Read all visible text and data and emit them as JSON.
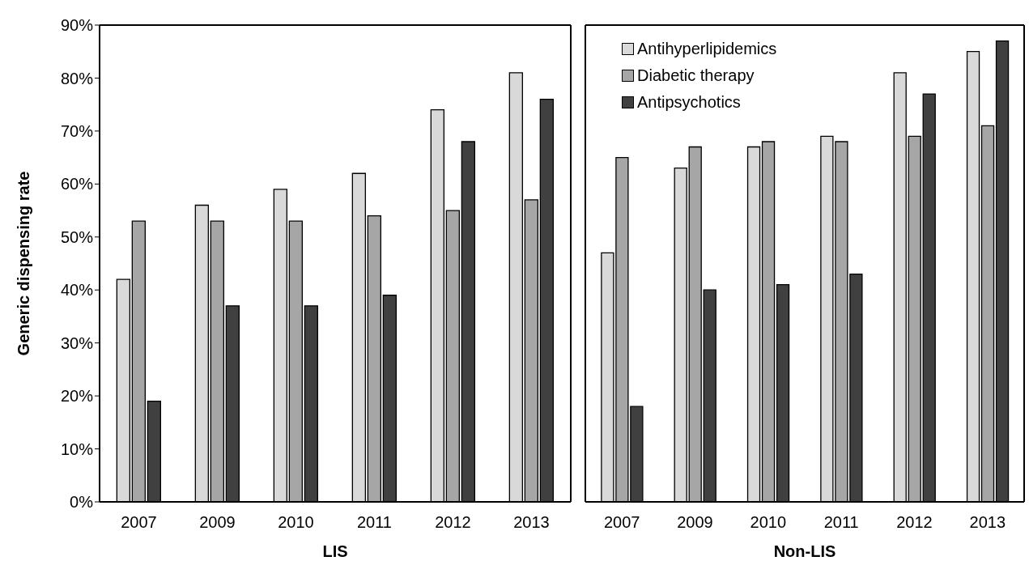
{
  "chart_data": [
    {
      "type": "bar",
      "xlabel": "LIS",
      "ylabel": "Generic dispensing rate",
      "categories": [
        "2007",
        "2009",
        "2010",
        "2011",
        "2012",
        "2013"
      ],
      "ylim": [
        0,
        90
      ],
      "yticks": [
        {
          "value": 0,
          "label": "0%"
        },
        {
          "value": 10,
          "label": "10%"
        },
        {
          "value": 20,
          "label": "20%"
        },
        {
          "value": 30,
          "label": "30%"
        },
        {
          "value": 40,
          "label": "40%"
        },
        {
          "value": 50,
          "label": "50%"
        },
        {
          "value": 60,
          "label": "60%"
        },
        {
          "value": 70,
          "label": "70%"
        },
        {
          "value": 80,
          "label": "80%"
        },
        {
          "value": 90,
          "label": "90%"
        }
      ],
      "grid": false,
      "series": [
        {
          "color": "#d9d9d9",
          "values": [
            42,
            56,
            59,
            62,
            74,
            81
          ]
        },
        {
          "color": "#a6a6a6",
          "values": [
            53,
            53,
            53,
            54,
            55,
            57
          ]
        },
        {
          "color": "#404040",
          "values": [
            19,
            37,
            37,
            39,
            68,
            76
          ]
        }
      ]
    },
    {
      "type": "bar",
      "xlabel": "Non-LIS",
      "categories": [
        "2007",
        "2009",
        "2010",
        "2011",
        "2012",
        "2013"
      ],
      "ylim": [
        0,
        90
      ],
      "grid": false,
      "tick_labels": "x",
      "legend": "top left",
      "series": [
        {
          "name": "Antihyperlipidemics",
          "color": "#d9d9d9",
          "values": [
            47,
            63,
            67,
            69,
            81,
            85
          ]
        },
        {
          "name": "Diabetic therapy",
          "color": "#a6a6a6",
          "values": [
            65,
            67,
            68,
            68,
            69,
            71
          ]
        },
        {
          "name": "Antipsychotics",
          "color": "#404040",
          "values": [
            18,
            40,
            41,
            43,
            77,
            87
          ]
        }
      ]
    }
  ]
}
